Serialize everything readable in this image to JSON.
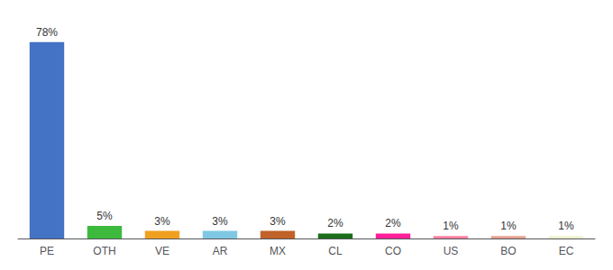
{
  "chart_data": {
    "type": "bar",
    "categories": [
      "PE",
      "OTH",
      "VE",
      "AR",
      "MX",
      "CL",
      "CO",
      "US",
      "BO",
      "EC"
    ],
    "values": [
      78,
      5,
      3,
      3,
      3,
      2,
      2,
      1,
      1,
      1
    ],
    "value_labels": [
      "78%",
      "5%",
      "3%",
      "3%",
      "3%",
      "2%",
      "2%",
      "1%",
      "1%",
      "1%"
    ],
    "colors": [
      "#4472c4",
      "#3dba3d",
      "#f0a020",
      "#7ec8e3",
      "#c0622a",
      "#1a6e1a",
      "#ff1f9a",
      "#ff7fa0",
      "#e8a090",
      "#f0f0d0"
    ],
    "ylim": [
      0,
      84
    ],
    "data_labels": true,
    "tick_labels": "x",
    "grid": false
  }
}
